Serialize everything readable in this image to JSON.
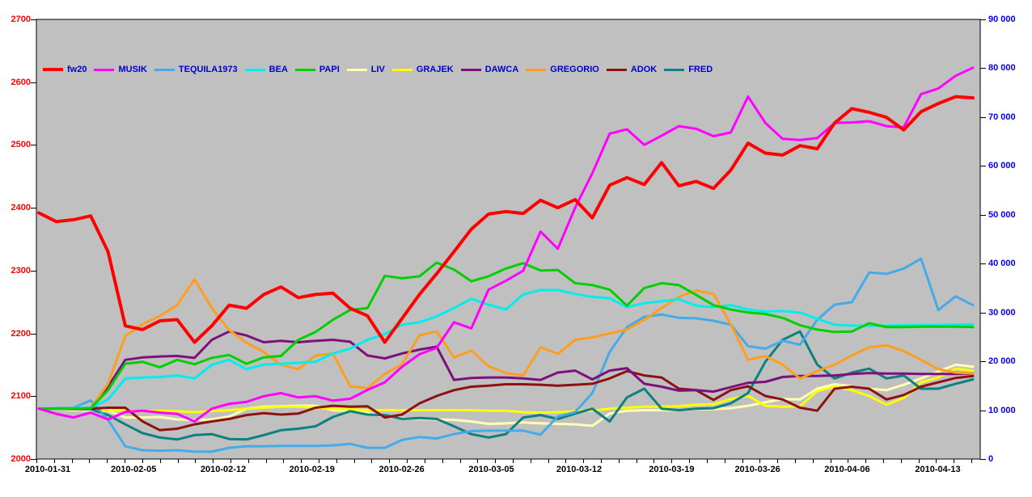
{
  "chart_data": {
    "type": "line",
    "title": "",
    "plot_background": "#c0c0c0",
    "page_background": "#ffffff",
    "frame_color": "#000000",
    "grid": false,
    "legend_position": "top-left-inside",
    "left_axis": {
      "color": "#ff0000",
      "min": 2000,
      "max": 2700,
      "step": 100,
      "tick_labels": [
        "2700",
        "2600",
        "2500",
        "2400",
        "2300",
        "2200",
        "2100",
        "2000"
      ]
    },
    "right_axis": {
      "color": "#0000ee",
      "min": 0,
      "max": 90000,
      "step": 10000,
      "tick_labels": [
        "90 000",
        "80 000",
        "70 000",
        "60 000",
        "50 000",
        "40 000",
        "30 000",
        "20 000",
        "10 000",
        "0"
      ]
    },
    "x_axis": {
      "color": "#000000",
      "labels": [
        "2010-01-31",
        "2010-02-05",
        "2010-02-12",
        "2010-02-19",
        "2010-02-26",
        "2010-03-05",
        "2010-03-12",
        "2010-03-19",
        "2010-03-26",
        "2010-04-06",
        "2010-04-13"
      ],
      "label_positions": [
        0.012,
        0.103,
        0.198,
        0.292,
        0.387,
        0.482,
        0.575,
        0.673,
        0.764,
        0.859,
        0.955
      ],
      "minor_ticks": 54
    },
    "series": [
      {
        "name": "LIV",
        "axis": "right",
        "color": "#ffffb3",
        "width": 3,
        "values": [
          10300,
          10200,
          10000,
          10000,
          9900,
          8500,
          8500,
          8600,
          8100,
          8000,
          8100,
          8700,
          10300,
          10700,
          10800,
          10900,
          10900,
          10000,
          9800,
          9500,
          8700,
          8400,
          8200,
          8100,
          8000,
          7700,
          7200,
          7300,
          7500,
          7300,
          7200,
          7100,
          6800,
          9300,
          9900,
          10000,
          10000,
          10000,
          10200,
          10200,
          10400,
          10900,
          11600,
          12300,
          12200,
          14400,
          15300,
          14900,
          14400,
          14100,
          15200,
          16500,
          17900,
          19300,
          18900
        ]
      },
      {
        "name": "GRAJEK",
        "axis": "right",
        "color": "#ffff00",
        "width": 3,
        "values": [
          10300,
          10300,
          10200,
          10200,
          10000,
          9900,
          9800,
          9900,
          9800,
          9600,
          9800,
          10000,
          10300,
          10500,
          10700,
          10700,
          10500,
          10300,
          10200,
          10000,
          10000,
          10000,
          10000,
          10000,
          10000,
          10000,
          9900,
          9900,
          9600,
          9500,
          9600,
          9800,
          9900,
          10300,
          10500,
          10700,
          10700,
          10800,
          11100,
          11200,
          12300,
          12900,
          10900,
          10700,
          10800,
          13900,
          14800,
          14100,
          12900,
          11100,
          12500,
          15700,
          16700,
          18500,
          18100
        ]
      },
      {
        "name": "FRED",
        "axis": "right",
        "color": "#0f8080",
        "width": 3,
        "values": [
          10300,
          10300,
          10200,
          10200,
          9000,
          7100,
          5300,
          4400,
          4000,
          4900,
          5100,
          4100,
          4000,
          4900,
          5900,
          6200,
          6700,
          8600,
          9800,
          9100,
          9000,
          8200,
          8400,
          8200,
          6700,
          5100,
          4400,
          5100,
          8500,
          9000,
          8200,
          9300,
          10300,
          7700,
          12600,
          14400,
          10300,
          10000,
          10300,
          10400,
          11400,
          13500,
          19900,
          24400,
          26100,
          19300,
          16500,
          17700,
          18500,
          16500,
          17100,
          14400,
          14400,
          15400,
          16300
        ]
      },
      {
        "name": "TEQUILA1973",
        "axis": "right",
        "color": "#45aae8",
        "width": 3,
        "values": [
          10300,
          10400,
          10500,
          12000,
          8000,
          2600,
          1800,
          1700,
          1800,
          1500,
          1500,
          2300,
          2600,
          2600,
          2700,
          2700,
          2700,
          2800,
          3100,
          2300,
          2300,
          3900,
          4500,
          4200,
          5100,
          5700,
          5800,
          5800,
          5800,
          5000,
          8700,
          9600,
          13500,
          21900,
          27000,
          29100,
          29600,
          28900,
          28800,
          28300,
          27500,
          23100,
          22600,
          24200,
          23400,
          28500,
          31600,
          32100,
          38200,
          37900,
          39000,
          41000,
          30500,
          33300,
          31500
        ]
      },
      {
        "name": "ADOK",
        "axis": "right",
        "color": "#8e1111",
        "width": 3,
        "values": [
          10300,
          10300,
          10300,
          10300,
          10500,
          10500,
          7700,
          5900,
          6200,
          7100,
          7700,
          8200,
          9000,
          9400,
          9100,
          9300,
          10500,
          10900,
          10700,
          10800,
          8500,
          9100,
          11400,
          12900,
          14100,
          14800,
          15000,
          15300,
          15300,
          15200,
          15000,
          15200,
          15400,
          16500,
          18000,
          17100,
          16700,
          14400,
          14100,
          12100,
          14100,
          14900,
          12900,
          12200,
          10500,
          9900,
          14400,
          14800,
          14400,
          12200,
          13100,
          14800,
          15700,
          16600,
          17000
        ]
      },
      {
        "name": "DAWCA",
        "axis": "right",
        "color": "#7d107d",
        "width": 3,
        "values": [
          10300,
          10300,
          10300,
          10400,
          14800,
          20300,
          20800,
          21000,
          21100,
          20700,
          24400,
          26100,
          25300,
          23900,
          24200,
          23900,
          24200,
          24400,
          24000,
          21200,
          20600,
          21600,
          22400,
          23000,
          16200,
          16600,
          16700,
          16700,
          16500,
          16200,
          17700,
          18100,
          16300,
          18100,
          18600,
          15400,
          14800,
          14000,
          14100,
          13800,
          14700,
          15600,
          15800,
          16800,
          17000,
          17000,
          17100,
          17400,
          17600,
          17500,
          17500,
          17400,
          17400,
          17400,
          17500
        ]
      },
      {
        "name": "GREGORIO",
        "axis": "right",
        "color": "#ff9e1d",
        "width": 3,
        "values": [
          10300,
          10300,
          10400,
          10500,
          15400,
          25200,
          27600,
          29300,
          31500,
          36800,
          30900,
          26400,
          23800,
          21900,
          19300,
          18400,
          21200,
          21600,
          14900,
          14500,
          17400,
          19400,
          25300,
          26100,
          20800,
          22200,
          19000,
          17600,
          17100,
          22900,
          21500,
          24400,
          24900,
          25700,
          26500,
          28500,
          30900,
          33200,
          34500,
          33800,
          27600,
          20300,
          21100,
          19300,
          16500,
          18000,
          19300,
          21200,
          22900,
          23300,
          22100,
          20300,
          18400,
          17700,
          17500
        ]
      },
      {
        "name": "BEA",
        "axis": "right",
        "color": "#00eded",
        "width": 3,
        "values": [
          10300,
          10300,
          10400,
          10500,
          12200,
          16500,
          16700,
          16800,
          17100,
          16500,
          19300,
          20300,
          18400,
          19300,
          19500,
          19700,
          19900,
          21600,
          22600,
          24400,
          25600,
          27500,
          28000,
          29200,
          30900,
          32800,
          31600,
          30600,
          33700,
          34600,
          34600,
          33800,
          33200,
          32900,
          31100,
          31900,
          32300,
          32700,
          31400,
          31100,
          31500,
          30600,
          30200,
          30300,
          30000,
          28700,
          27500,
          27300,
          27300,
          27300,
          27400,
          27400,
          27400,
          27500,
          27500
        ]
      },
      {
        "name": "PAPI",
        "axis": "right",
        "color": "#00cf00",
        "width": 3,
        "values": [
          10300,
          10300,
          10300,
          10400,
          14100,
          19500,
          19900,
          18800,
          20300,
          19400,
          20700,
          21300,
          19500,
          20800,
          21100,
          24400,
          26000,
          28500,
          30500,
          30900,
          37500,
          37000,
          37400,
          40200,
          38800,
          36400,
          37400,
          39000,
          40100,
          38600,
          38700,
          36000,
          35600,
          34700,
          31400,
          35000,
          36000,
          35600,
          33600,
          31500,
          30600,
          30000,
          29700,
          28900,
          27400,
          26500,
          26000,
          26100,
          27800,
          27000,
          27000,
          27100,
          27100,
          27100,
          27000
        ]
      },
      {
        "name": "MUSIK",
        "axis": "right",
        "color": "#ff00ff",
        "width": 3,
        "values": [
          10300,
          9250,
          8500,
          9500,
          8100,
          9650,
          9900,
          9500,
          9250,
          7700,
          10300,
          11300,
          11700,
          12850,
          13500,
          12600,
          12850,
          11950,
          12350,
          14150,
          15700,
          18900,
          21450,
          22750,
          28000,
          26750,
          34700,
          36500,
          38550,
          46550,
          43050,
          51450,
          58500,
          66600,
          67500,
          64300,
          66200,
          68150,
          67600,
          66100,
          66850,
          74200,
          68800,
          65550,
          65300,
          65700,
          68800,
          68900,
          69150,
          68150,
          67900,
          74700,
          75850,
          78450,
          80100
        ]
      },
      {
        "name": "fw20",
        "axis": "left",
        "color": "#ff0000",
        "width": 4,
        "values": [
          2392,
          2378,
          2381,
          2387,
          2330,
          2212,
          2206,
          2220,
          2222,
          2186,
          2212,
          2245,
          2240,
          2262,
          2274,
          2257,
          2262,
          2264,
          2240,
          2228,
          2186,
          2224,
          2262,
          2295,
          2330,
          2366,
          2390,
          2394,
          2391,
          2412,
          2400,
          2413,
          2384,
          2436,
          2448,
          2437,
          2472,
          2435,
          2442,
          2431,
          2460,
          2503,
          2487,
          2484,
          2499,
          2494,
          2535,
          2558,
          2552,
          2544,
          2524,
          2553,
          2566,
          2577,
          2575
        ]
      }
    ]
  },
  "legend": {
    "text_color": "#0000cc",
    "entries": [
      {
        "label": "fw20",
        "color": "#ff0000",
        "thick": true
      },
      {
        "label": "MUSIK",
        "color": "#ff00ff",
        "thick": false
      },
      {
        "label": "TEQUILA1973",
        "color": "#45aae8",
        "thick": false
      },
      {
        "label": "BEA",
        "color": "#00eded",
        "thick": false
      },
      {
        "label": "PAPI",
        "color": "#00cf00",
        "thick": false
      },
      {
        "label": "LIV",
        "color": "#ffffb3",
        "thick": false
      },
      {
        "label": "GRAJEK",
        "color": "#ffff00",
        "thick": false
      },
      {
        "label": "DAWCA",
        "color": "#7d107d",
        "thick": false
      },
      {
        "label": "GREGORIO",
        "color": "#ff9e1d",
        "thick": false
      },
      {
        "label": "ADOK",
        "color": "#8e1111",
        "thick": false
      },
      {
        "label": "FRED",
        "color": "#0f8080",
        "thick": false
      }
    ]
  }
}
